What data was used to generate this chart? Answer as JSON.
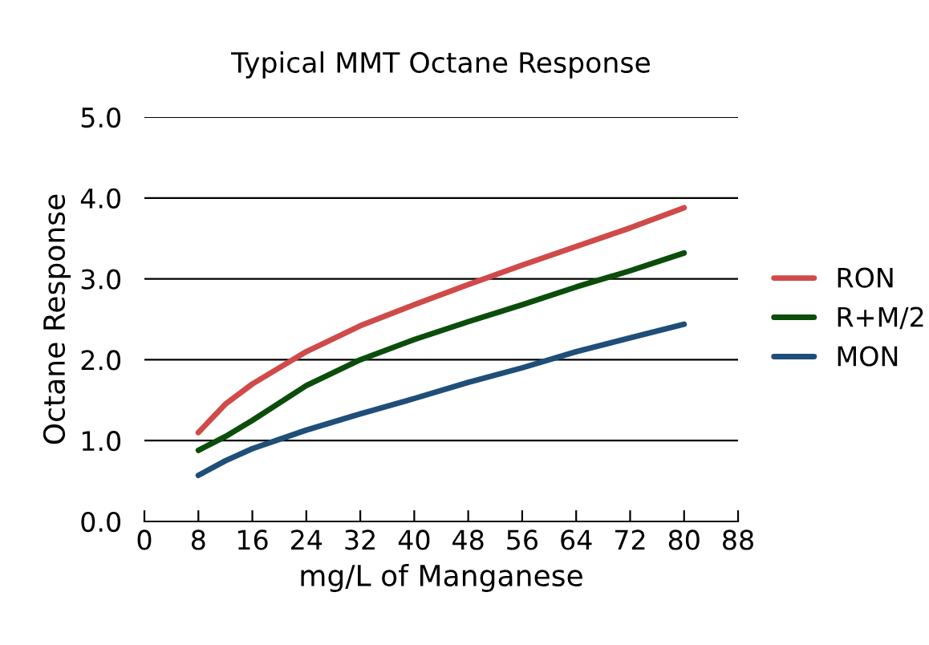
{
  "chart_data": {
    "type": "line",
    "title": "Typical MMT Octane Response",
    "xlabel": "mg/L of Manganese",
    "ylabel": "Octane Response",
    "x": [
      8,
      12,
      16,
      24,
      32,
      40,
      48,
      56,
      64,
      72,
      80
    ],
    "series": [
      {
        "name": "RON",
        "color": "#d04a4a",
        "values": [
          1.1,
          1.45,
          1.7,
          2.1,
          2.42,
          2.68,
          2.93,
          3.17,
          3.4,
          3.63,
          3.88
        ]
      },
      {
        "name": "R+M/2",
        "color": "#0b4d0b",
        "values": [
          0.88,
          1.05,
          1.25,
          1.68,
          2.0,
          2.25,
          2.47,
          2.68,
          2.9,
          3.1,
          3.32
        ]
      },
      {
        "name": "MON",
        "color": "#1f4e79",
        "values": [
          0.57,
          0.75,
          0.9,
          1.13,
          1.33,
          1.52,
          1.72,
          1.9,
          2.1,
          2.27,
          2.44
        ]
      }
    ],
    "xlim": [
      0,
      88
    ],
    "xticks": [
      0,
      8,
      16,
      24,
      32,
      40,
      48,
      56,
      64,
      72,
      80,
      88
    ],
    "ylim": [
      0,
      5
    ],
    "yticks": [
      {
        "value": 0,
        "label": "0.0"
      },
      {
        "value": 1,
        "label": "1.0"
      },
      {
        "value": 2,
        "label": "2.0"
      },
      {
        "value": 3,
        "label": "3.0"
      },
      {
        "value": 4,
        "label": "4.0"
      },
      {
        "value": 5,
        "label": "5.0"
      }
    ],
    "grid": "y",
    "legend": "right",
    "marker": "none",
    "line_style": "solid"
  }
}
